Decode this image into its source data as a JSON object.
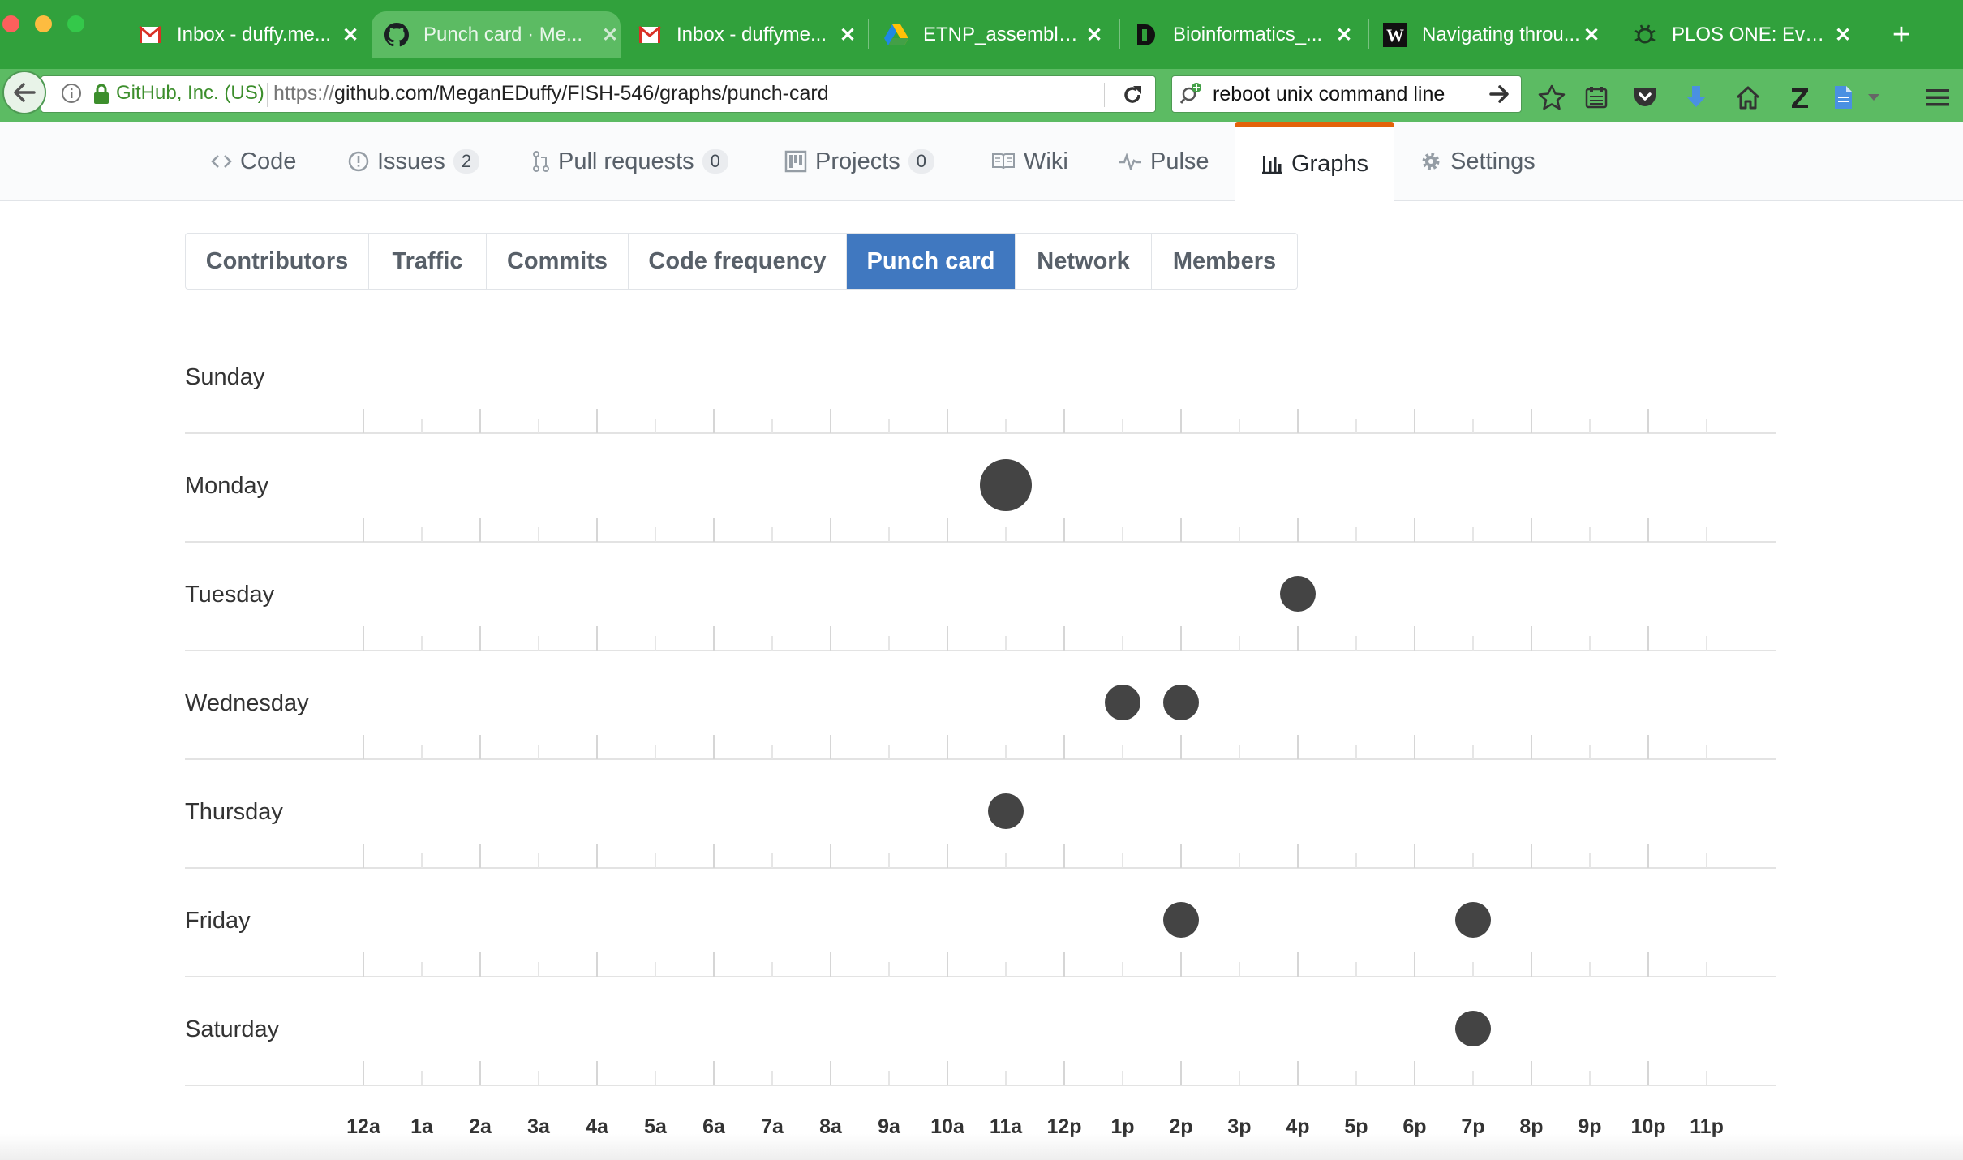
{
  "browser": {
    "tabs": [
      {
        "title": "Inbox - duffy.me...",
        "icon": "gmail-icon"
      },
      {
        "title": "Punch card · Me...",
        "icon": "github-icon",
        "active": true
      },
      {
        "title": "Inbox - duffyme...",
        "icon": "gmail-icon"
      },
      {
        "title": "ETNP_assembly ...",
        "icon": "google-drive-icon"
      },
      {
        "title": "Bioinformatics_...",
        "icon": "d-logo-icon"
      },
      {
        "title": "Navigating throu...",
        "icon": "w-logo-icon"
      },
      {
        "title": "PLOS ONE: Eval...",
        "icon": "plos-bug-icon"
      }
    ],
    "new_tab": "+",
    "identity": "GitHub, Inc. (US)",
    "url_prefix": "https://",
    "url_host_path": "github.com/MeganEDuffy/FISH-546/graphs/punch-card",
    "search_value": "reboot unix command line"
  },
  "repo_nav": {
    "items": [
      {
        "label": "Code",
        "icon": "code-icon"
      },
      {
        "label": "Issues",
        "count": "2",
        "icon": "issue-icon"
      },
      {
        "label": "Pull requests",
        "count": "0",
        "icon": "pull-request-icon"
      },
      {
        "label": "Projects",
        "count": "0",
        "icon": "project-icon"
      },
      {
        "label": "Wiki",
        "icon": "book-icon"
      },
      {
        "label": "Pulse",
        "icon": "pulse-icon"
      },
      {
        "label": "Graphs",
        "icon": "graph-icon",
        "selected": true
      },
      {
        "label": "Settings",
        "icon": "gear-icon"
      }
    ]
  },
  "graph_nav": {
    "items": [
      "Contributors",
      "Traffic",
      "Commits",
      "Code frequency",
      "Punch card",
      "Network",
      "Members"
    ],
    "selected": "Punch card"
  },
  "chart_data": {
    "type": "scatter",
    "days": [
      "Sunday",
      "Monday",
      "Tuesday",
      "Wednesday",
      "Thursday",
      "Friday",
      "Saturday"
    ],
    "hours": [
      "12a",
      "1a",
      "2a",
      "3a",
      "4a",
      "5a",
      "6a",
      "7a",
      "8a",
      "9a",
      "10a",
      "11a",
      "12p",
      "1p",
      "2p",
      "3p",
      "4p",
      "5p",
      "6p",
      "7p",
      "8p",
      "9p",
      "10p",
      "11p"
    ],
    "points": [
      {
        "day": "Monday",
        "hour": "11a",
        "commits": 2
      },
      {
        "day": "Tuesday",
        "hour": "4p",
        "commits": 1
      },
      {
        "day": "Wednesday",
        "hour": "1p",
        "commits": 1
      },
      {
        "day": "Wednesday",
        "hour": "2p",
        "commits": 1
      },
      {
        "day": "Thursday",
        "hour": "11a",
        "commits": 1
      },
      {
        "day": "Friday",
        "hour": "2p",
        "commits": 1
      },
      {
        "day": "Friday",
        "hour": "7p",
        "commits": 1
      },
      {
        "day": "Saturday",
        "hour": "7p",
        "commits": 1
      }
    ],
    "dot_color": "#444444"
  }
}
